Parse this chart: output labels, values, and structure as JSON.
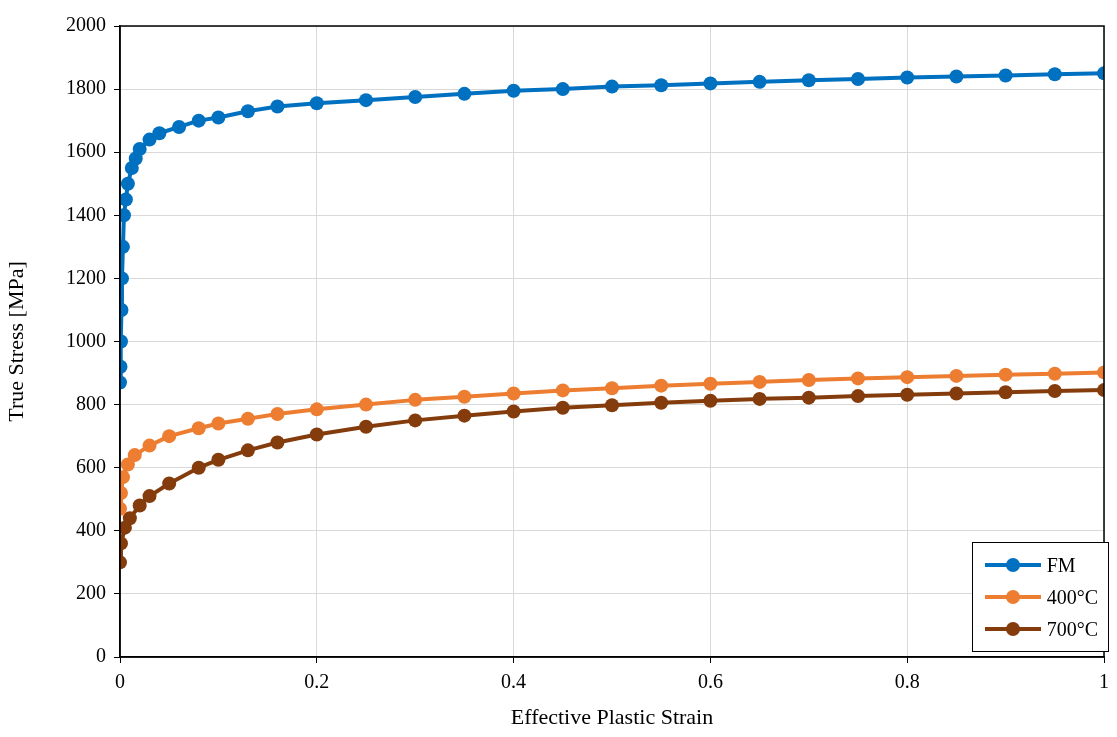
{
  "chart_data": {
    "type": "line",
    "xlabel": "Effective Plastic Strain",
    "ylabel": "True Stress [MPa]",
    "xlim": [
      0,
      1
    ],
    "xticks": [
      0,
      0.2,
      0.4,
      0.6,
      0.8,
      1
    ],
    "ylim": [
      0,
      2000
    ],
    "yticks": [
      0,
      200,
      400,
      600,
      800,
      1000,
      1200,
      1400,
      1600,
      1800,
      2000
    ],
    "grid": true,
    "legend": "bottom right",
    "marker": "circle",
    "line_style": "solid",
    "series": [
      {
        "name": "FM",
        "color": "#0070c0",
        "x": [
          0,
          0.0005,
          0.001,
          0.0015,
          0.002,
          0.003,
          0.004,
          0.006,
          0.008,
          0.012,
          0.016,
          0.02,
          0.03,
          0.04,
          0.06,
          0.08,
          0.1,
          0.13,
          0.16,
          0.2,
          0.25,
          0.3,
          0.35,
          0.4,
          0.45,
          0.5,
          0.55,
          0.6,
          0.65,
          0.7,
          0.75,
          0.8,
          0.85,
          0.9,
          0.95,
          1
        ],
        "values": [
          870,
          920,
          1000,
          1100,
          1200,
          1300,
          1400,
          1450,
          1500,
          1550,
          1580,
          1610,
          1640,
          1660,
          1680,
          1700,
          1710,
          1730,
          1745,
          1755,
          1765,
          1775,
          1785,
          1795,
          1800,
          1808,
          1812,
          1818,
          1823,
          1828,
          1832,
          1837,
          1840,
          1843,
          1847,
          1850
        ]
      },
      {
        "name": "400°C",
        "color": "#ed7d31",
        "x": [
          0,
          0.001,
          0.003,
          0.008,
          0.015,
          0.03,
          0.05,
          0.08,
          0.1,
          0.13,
          0.16,
          0.2,
          0.25,
          0.3,
          0.35,
          0.4,
          0.45,
          0.5,
          0.55,
          0.6,
          0.65,
          0.7,
          0.75,
          0.8,
          0.85,
          0.9,
          0.95,
          1
        ],
        "values": [
          470,
          520,
          570,
          610,
          640,
          670,
          700,
          725,
          740,
          755,
          770,
          785,
          800,
          815,
          825,
          835,
          845,
          852,
          860,
          866,
          872,
          878,
          883,
          887,
          891,
          895,
          898,
          902
        ]
      },
      {
        "name": "700°C",
        "color": "#843c0c",
        "x": [
          0,
          0.001,
          0.005,
          0.01,
          0.02,
          0.03,
          0.05,
          0.08,
          0.1,
          0.13,
          0.16,
          0.2,
          0.25,
          0.3,
          0.35,
          0.4,
          0.45,
          0.5,
          0.55,
          0.6,
          0.65,
          0.7,
          0.75,
          0.8,
          0.85,
          0.9,
          0.95,
          1
        ],
        "values": [
          300,
          360,
          410,
          440,
          480,
          510,
          550,
          600,
          625,
          655,
          680,
          705,
          730,
          750,
          765,
          778,
          790,
          798,
          806,
          812,
          818,
          822,
          827,
          831,
          835,
          839,
          843,
          846
        ]
      }
    ]
  }
}
